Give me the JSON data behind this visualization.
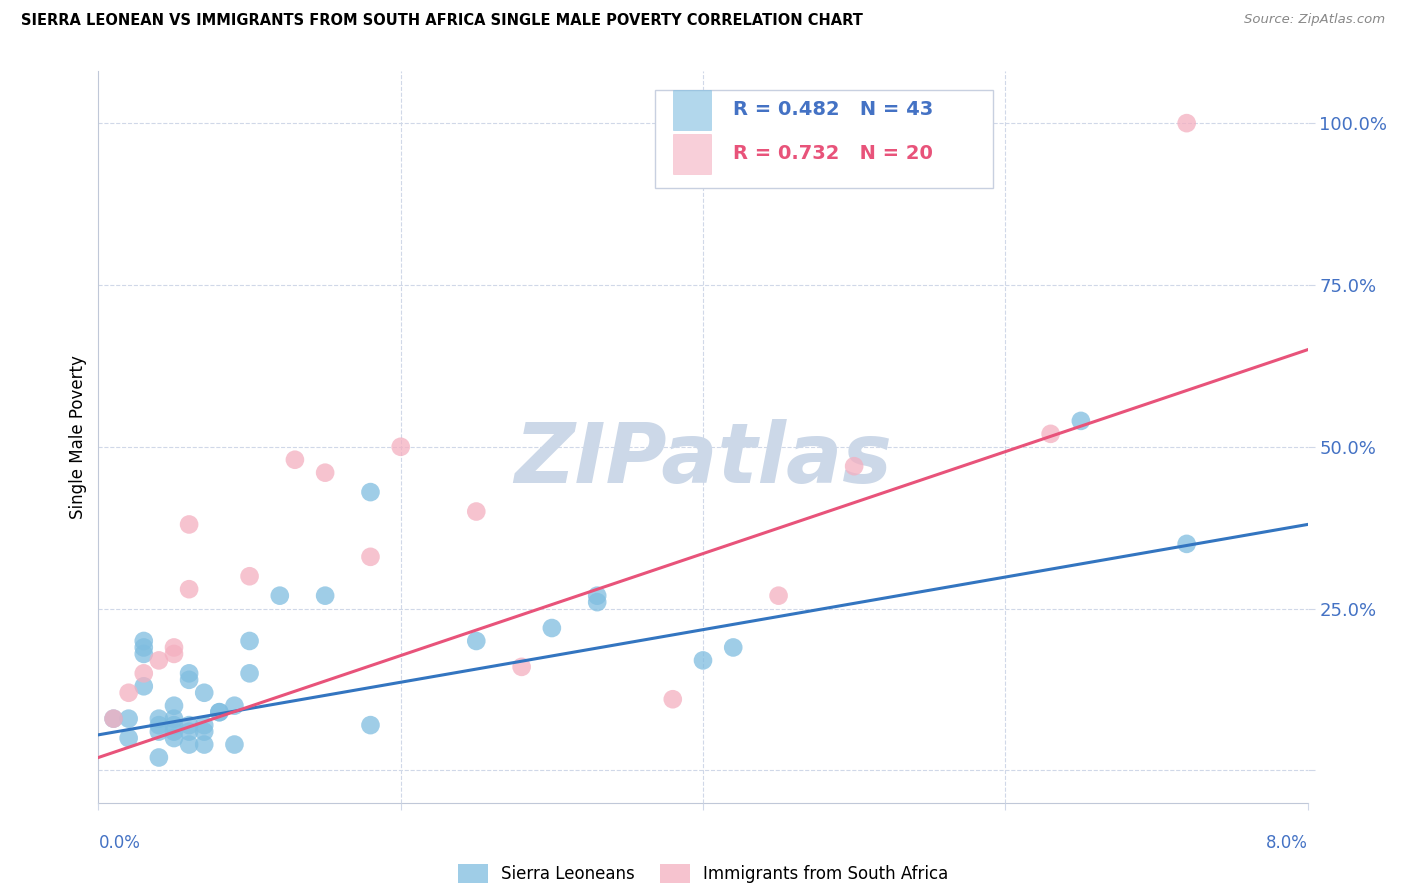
{
  "title": "SIERRA LEONEAN VS IMMIGRANTS FROM SOUTH AFRICA SINGLE MALE POVERTY CORRELATION CHART",
  "source": "Source: ZipAtlas.com",
  "ylabel": "Single Male Poverty",
  "y_ticks": [
    0.0,
    0.25,
    0.5,
    0.75,
    1.0
  ],
  "y_tick_labels": [
    "",
    "25.0%",
    "50.0%",
    "75.0%",
    "100.0%"
  ],
  "x_range": [
    0.0,
    0.08
  ],
  "y_range": [
    -0.05,
    1.08
  ],
  "sierra_R": 0.482,
  "sierra_N": 43,
  "sa_R": 0.732,
  "sa_N": 20,
  "sierra_color": "#7fbde0",
  "sa_color": "#f4afc0",
  "sierra_line_color": "#3375c0",
  "sa_line_color": "#e8537a",
  "watermark_text": "ZIPatlas",
  "watermark_color": "#ccd8e8",
  "sierra_x": [
    0.001,
    0.002,
    0.002,
    0.003,
    0.003,
    0.003,
    0.003,
    0.004,
    0.004,
    0.004,
    0.004,
    0.005,
    0.005,
    0.005,
    0.005,
    0.005,
    0.006,
    0.006,
    0.006,
    0.006,
    0.006,
    0.007,
    0.007,
    0.007,
    0.007,
    0.008,
    0.008,
    0.009,
    0.009,
    0.01,
    0.01,
    0.012,
    0.015,
    0.018,
    0.018,
    0.025,
    0.03,
    0.033,
    0.033,
    0.04,
    0.042,
    0.065,
    0.072
  ],
  "sierra_y": [
    0.08,
    0.05,
    0.08,
    0.13,
    0.18,
    0.19,
    0.2,
    0.02,
    0.06,
    0.07,
    0.08,
    0.05,
    0.06,
    0.07,
    0.08,
    0.1,
    0.04,
    0.06,
    0.07,
    0.14,
    0.15,
    0.04,
    0.06,
    0.07,
    0.12,
    0.09,
    0.09,
    0.04,
    0.1,
    0.15,
    0.2,
    0.27,
    0.27,
    0.07,
    0.43,
    0.2,
    0.22,
    0.26,
    0.27,
    0.17,
    0.19,
    0.54,
    0.35
  ],
  "sa_x": [
    0.001,
    0.002,
    0.003,
    0.004,
    0.005,
    0.005,
    0.006,
    0.006,
    0.01,
    0.013,
    0.015,
    0.018,
    0.02,
    0.025,
    0.028,
    0.038,
    0.045,
    0.05,
    0.063,
    0.072
  ],
  "sa_y": [
    0.08,
    0.12,
    0.15,
    0.17,
    0.18,
    0.19,
    0.28,
    0.38,
    0.3,
    0.48,
    0.46,
    0.33,
    0.5,
    0.4,
    0.16,
    0.11,
    0.27,
    0.47,
    0.52,
    1.0
  ],
  "blue_trendline_x": [
    0.0,
    0.08
  ],
  "blue_trendline_y": [
    0.055,
    0.38
  ],
  "pink_trendline_x": [
    0.0,
    0.08
  ],
  "pink_trendline_y": [
    0.02,
    0.65
  ],
  "text_color_blue": "#4472c4",
  "text_color_pink": "#e8537a"
}
